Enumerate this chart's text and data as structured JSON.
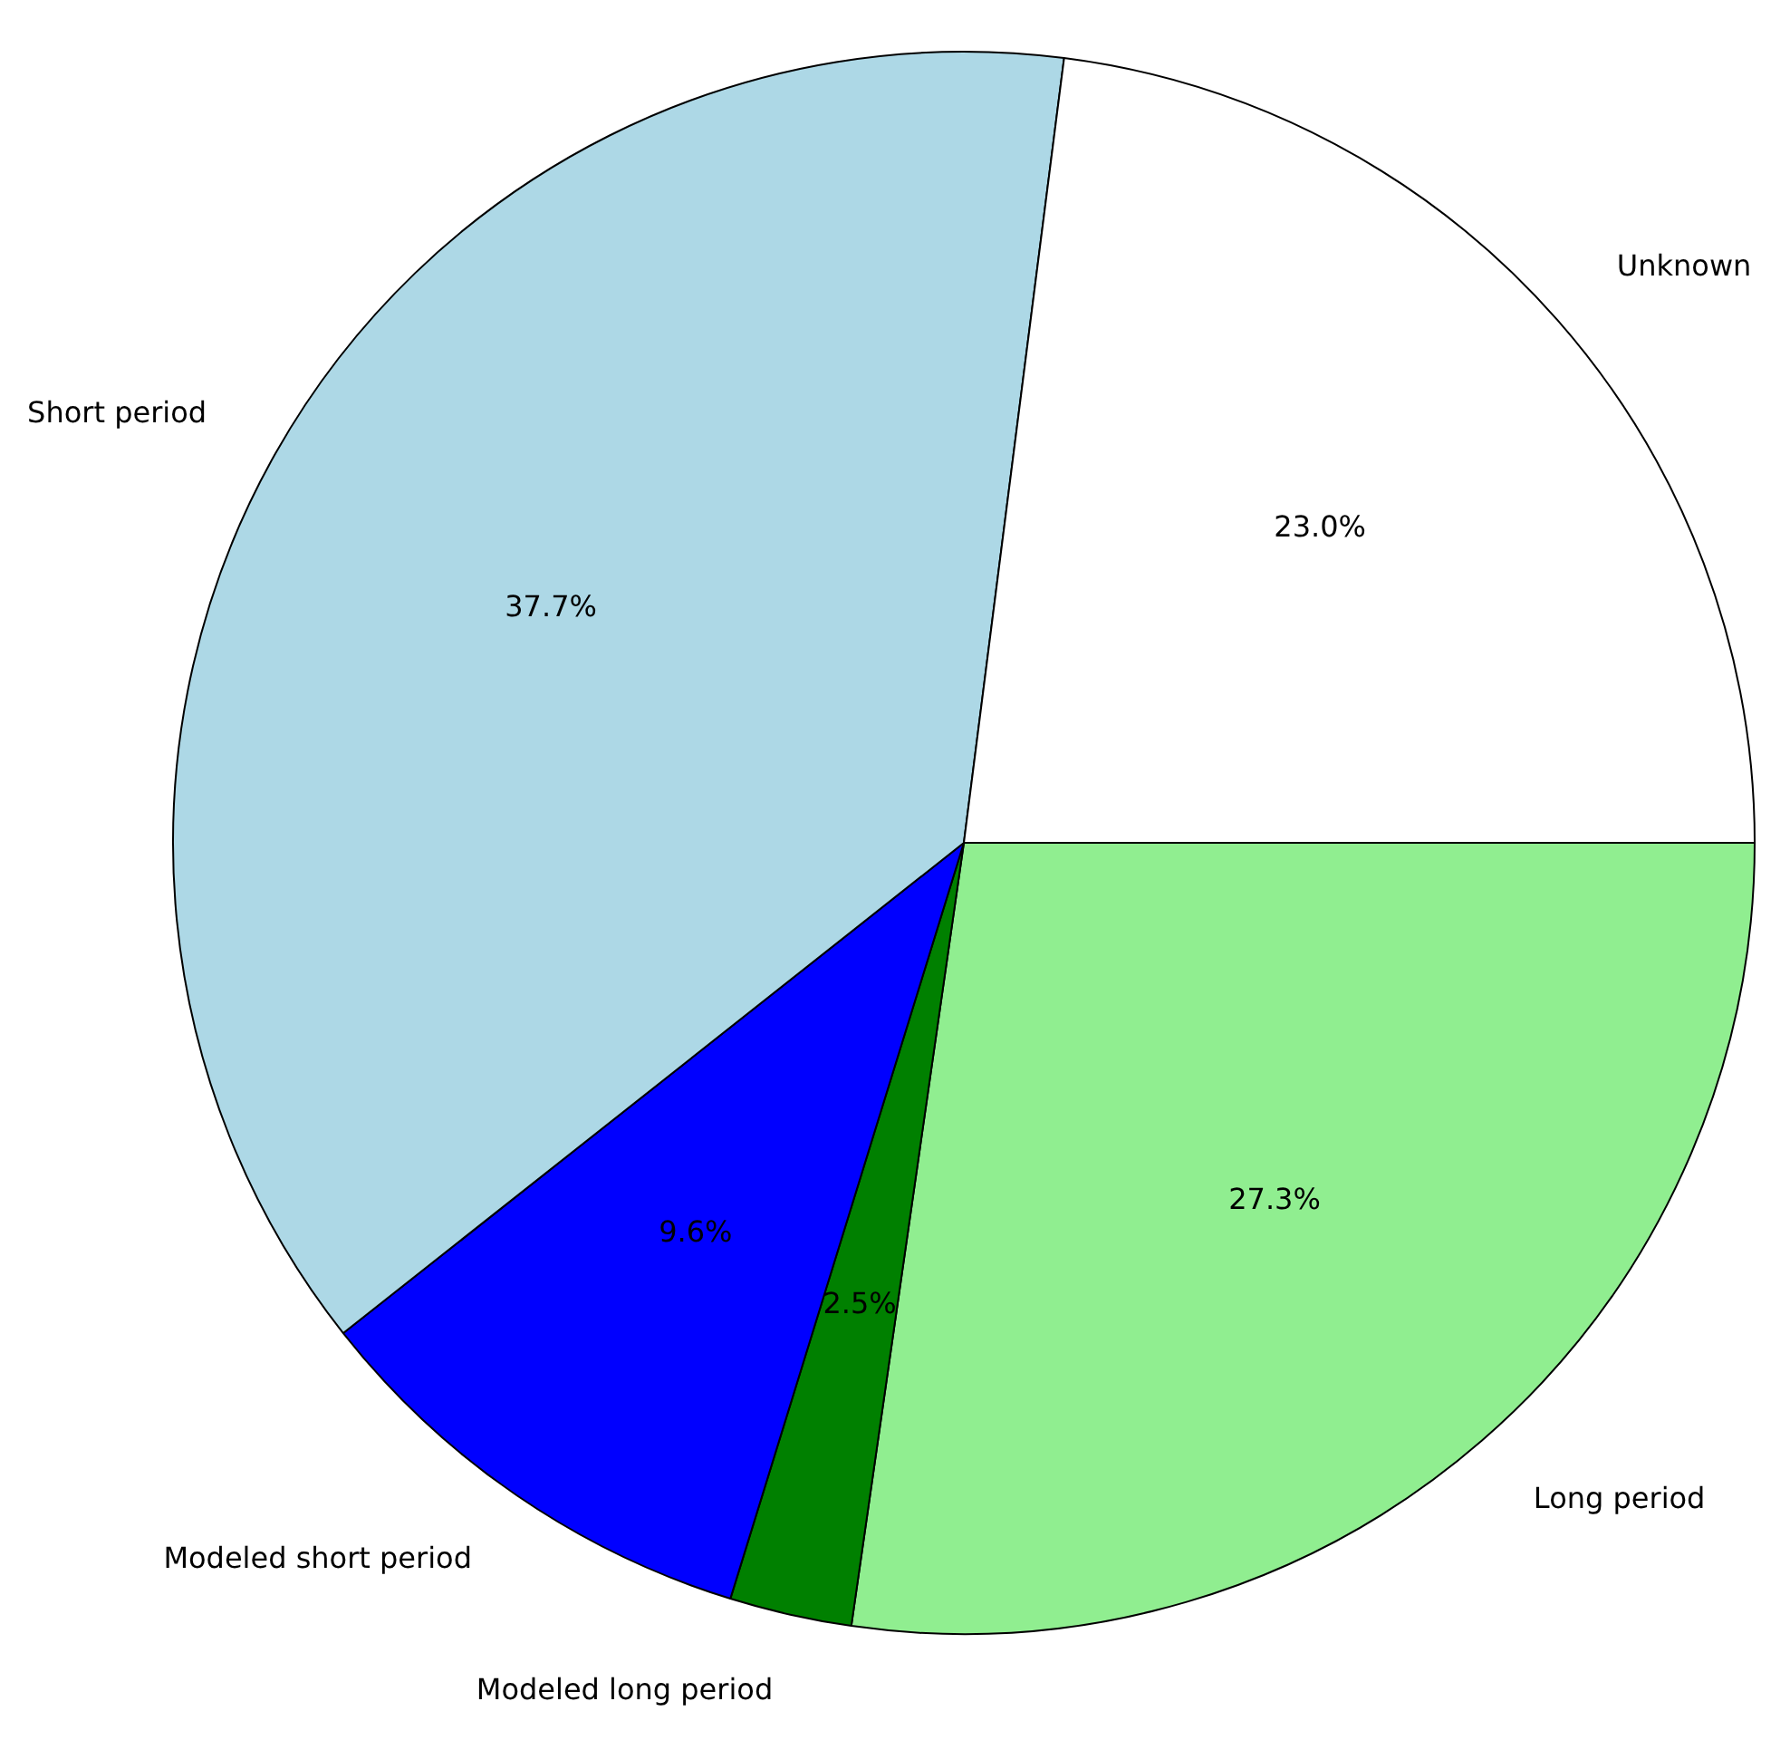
{
  "chart_data": {
    "type": "pie",
    "categories": [
      "Unknown",
      "Short period",
      "Modeled short period",
      "Modeled long period",
      "Long period"
    ],
    "values": [
      23.0,
      37.7,
      9.6,
      2.5,
      27.3
    ],
    "colors": [
      "#ffffff",
      "#add8e6",
      "#0000ff",
      "#008000",
      "#90ee90"
    ],
    "value_labels": [
      "23.0%",
      "37.7%",
      "9.6%",
      "2.5%",
      "27.3%"
    ],
    "legend": false
  }
}
